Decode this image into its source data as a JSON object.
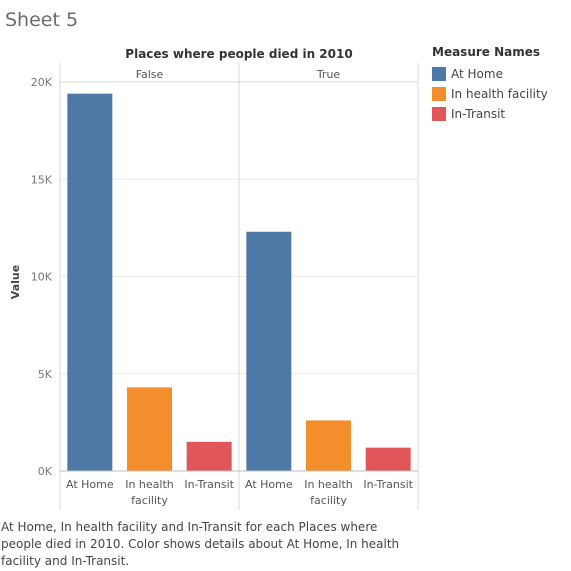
{
  "sheet_title": "Sheet 5",
  "chart_data": {
    "type": "bar",
    "title": "Places where people died in 2010",
    "ylabel": "Value",
    "ylim": [
      0,
      20000
    ],
    "yticks": [
      {
        "value": 0,
        "label": "0K"
      },
      {
        "value": 5000,
        "label": "5K"
      },
      {
        "value": 10000,
        "label": "10K"
      },
      {
        "value": 15000,
        "label": "15K"
      },
      {
        "value": 20000,
        "label": "20K"
      }
    ],
    "grid": true,
    "legend_position": "right",
    "panels": [
      {
        "label": "False",
        "bars": [
          {
            "measure": "At Home",
            "value": 19400
          },
          {
            "measure": "In health facility",
            "value": 4300
          },
          {
            "measure": "In-Transit",
            "value": 1500
          }
        ]
      },
      {
        "label": "True",
        "bars": [
          {
            "measure": "At Home",
            "value": 12300
          },
          {
            "measure": "In health facility",
            "value": 2600
          },
          {
            "measure": "In-Transit",
            "value": 1200
          }
        ]
      }
    ],
    "category_labels": [
      [
        "At Home"
      ],
      [
        "In health",
        "facility"
      ],
      [
        "In-Transit"
      ]
    ],
    "legend": {
      "title": "Measure Names",
      "items": [
        {
          "label": "At Home",
          "color": "#4e79a7"
        },
        {
          "label": "In health facility",
          "color": "#f28e2b"
        },
        {
          "label": "In-Transit",
          "color": "#e15759"
        }
      ]
    }
  },
  "caption": "At Home, In health facility and In-Transit for each Places where people died in 2010.  Color shows details about At Home, In health facility and In-Transit."
}
